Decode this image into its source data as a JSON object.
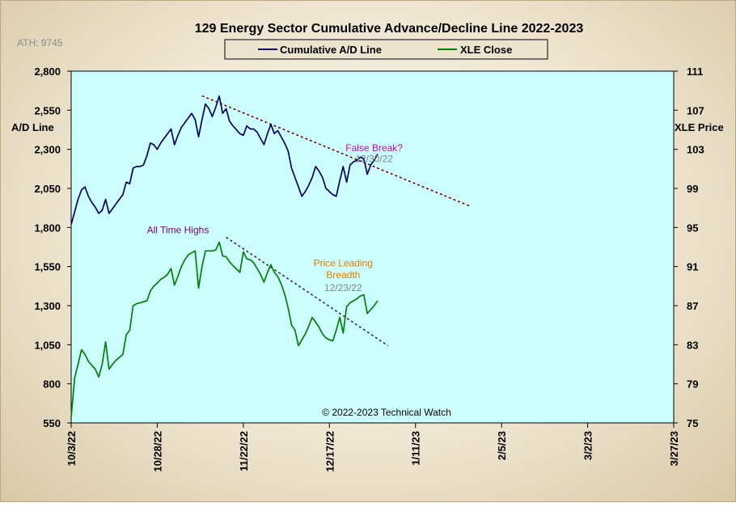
{
  "chart_data": {
    "type": "line",
    "title": "129 Energy Sector Cumulative Advance/Decline Line 2022-2023",
    "ath_note": "ATH: 9745",
    "y_left_label": "A/D Line",
    "y_right_label": "XLE Price",
    "copyright": "© 2022-2023  Technical Watch",
    "y_left": {
      "min": 550,
      "max": 2800,
      "ticks": [
        550,
        800,
        1050,
        1300,
        1550,
        1800,
        2050,
        2300,
        2550,
        2800
      ],
      "tick_labels": [
        "550",
        "800",
        "1,050",
        "1,300",
        "1,550",
        "1,800",
        "2,050",
        "2,300",
        "2,550",
        "2,800"
      ]
    },
    "y_right": {
      "min": 75,
      "max": 111,
      "ticks": [
        75,
        79,
        83,
        87,
        91,
        95,
        99,
        103,
        107,
        111
      ],
      "tick_labels": [
        "75",
        "79",
        "83",
        "87",
        "91",
        "95",
        "99",
        "103",
        "107",
        "111"
      ]
    },
    "x": {
      "min_day": 0,
      "max_day": 175,
      "ticks": [
        0,
        25,
        50,
        75,
        100,
        125,
        150,
        175
      ],
      "tick_labels": [
        "10/3/22",
        "10/28/22",
        "11/22/22",
        "12/17/22",
        "1/11/23",
        "2/5/23",
        "3/2/23",
        "3/27/23"
      ]
    },
    "grid": false,
    "legend_position": "top-center",
    "colors": {
      "plot_bg": "#ccffff",
      "ad_line": "#000066",
      "xle_line": "#008000",
      "trend_ad": "#800000",
      "trend_xle": "#333333",
      "false_break": "#cc00cc",
      "date_gray": "#808080",
      "ath_label": "#800080",
      "price_leading": "#e07b00"
    },
    "series": [
      {
        "name": "Cumulative A/D Line",
        "axis": "left",
        "points": [
          [
            0,
            1820
          ],
          [
            1,
            1900
          ],
          [
            2,
            1980
          ],
          [
            3,
            2040
          ],
          [
            4,
            2060
          ],
          [
            5,
            2000
          ],
          [
            6,
            1960
          ],
          [
            7,
            1930
          ],
          [
            8,
            1890
          ],
          [
            9,
            1910
          ],
          [
            10,
            1980
          ],
          [
            11,
            1890
          ],
          [
            12,
            1920
          ],
          [
            13,
            1950
          ],
          [
            15,
            2010
          ],
          [
            16,
            2090
          ],
          [
            17,
            2080
          ],
          [
            18,
            2180
          ],
          [
            19,
            2190
          ],
          [
            20,
            2190
          ],
          [
            21,
            2200
          ],
          [
            22,
            2260
          ],
          [
            23,
            2340
          ],
          [
            24,
            2330
          ],
          [
            25,
            2300
          ],
          [
            26,
            2340
          ],
          [
            27,
            2370
          ],
          [
            29,
            2430
          ],
          [
            30,
            2330
          ],
          [
            31,
            2390
          ],
          [
            32,
            2440
          ],
          [
            33,
            2470
          ],
          [
            35,
            2530
          ],
          [
            36,
            2490
          ],
          [
            37,
            2380
          ],
          [
            38,
            2490
          ],
          [
            39,
            2590
          ],
          [
            40,
            2560
          ],
          [
            41,
            2510
          ],
          [
            42,
            2570
          ],
          [
            43,
            2640
          ],
          [
            44,
            2530
          ],
          [
            45,
            2560
          ],
          [
            46,
            2480
          ],
          [
            47,
            2450
          ],
          [
            49,
            2400
          ],
          [
            50,
            2390
          ],
          [
            51,
            2450
          ],
          [
            52,
            2430
          ],
          [
            53,
            2430
          ],
          [
            54,
            2410
          ],
          [
            55,
            2370
          ],
          [
            56,
            2330
          ],
          [
            57,
            2400
          ],
          [
            58,
            2460
          ],
          [
            59,
            2400
          ],
          [
            60,
            2420
          ],
          [
            61,
            2380
          ],
          [
            62,
            2340
          ],
          [
            63,
            2290
          ],
          [
            64,
            2180
          ],
          [
            65,
            2120
          ],
          [
            66,
            2060
          ],
          [
            67,
            2000
          ],
          [
            68,
            2030
          ],
          [
            69,
            2070
          ],
          [
            70,
            2120
          ],
          [
            71,
            2190
          ],
          [
            72,
            2160
          ],
          [
            73,
            2120
          ],
          [
            74,
            2050
          ],
          [
            75,
            2030
          ],
          [
            76,
            2010
          ],
          [
            77,
            2000
          ],
          [
            78,
            2100
          ],
          [
            79,
            2190
          ],
          [
            80,
            2090
          ],
          [
            81,
            2200
          ],
          [
            82,
            2220
          ],
          [
            83,
            2230
          ],
          [
            84,
            2250
          ],
          [
            85,
            2240
          ],
          [
            86,
            2140
          ],
          [
            87,
            2200
          ],
          [
            88,
            2230
          ],
          [
            89,
            2270
          ]
        ]
      },
      {
        "name": "XLE Close",
        "axis": "right",
        "points": [
          [
            0,
            75.6
          ],
          [
            1,
            79.6
          ],
          [
            2,
            81.0
          ],
          [
            3,
            82.5
          ],
          [
            4,
            82.0
          ],
          [
            5,
            81.3
          ],
          [
            6,
            80.9
          ],
          [
            7,
            80.5
          ],
          [
            8,
            79.7
          ],
          [
            9,
            81.0
          ],
          [
            10,
            83.3
          ],
          [
            11,
            80.5
          ],
          [
            12,
            81.0
          ],
          [
            13,
            81.4
          ],
          [
            15,
            82.0
          ],
          [
            16,
            84.0
          ],
          [
            17,
            84.5
          ],
          [
            18,
            87.0
          ],
          [
            19,
            87.2
          ],
          [
            20,
            87.3
          ],
          [
            21,
            87.4
          ],
          [
            22,
            87.5
          ],
          [
            23,
            88.5
          ],
          [
            24,
            89.0
          ],
          [
            25,
            89.3
          ],
          [
            26,
            89.7
          ],
          [
            27,
            89.9
          ],
          [
            28,
            90.2
          ],
          [
            29,
            90.8
          ],
          [
            30,
            89.1
          ],
          [
            31,
            90.0
          ],
          [
            32,
            91.0
          ],
          [
            33,
            91.7
          ],
          [
            34,
            92.2
          ],
          [
            35,
            92.4
          ],
          [
            36,
            92.6
          ],
          [
            37,
            88.8
          ],
          [
            38,
            91.0
          ],
          [
            39,
            92.6
          ],
          [
            40,
            92.6
          ],
          [
            41,
            92.6
          ],
          [
            42,
            92.7
          ],
          [
            43,
            93.5
          ],
          [
            44,
            92.1
          ],
          [
            45,
            92.0
          ],
          [
            46,
            91.5
          ],
          [
            47,
            91.1
          ],
          [
            49,
            90.4
          ],
          [
            50,
            92.5
          ],
          [
            51,
            91.8
          ],
          [
            52,
            91.7
          ],
          [
            53,
            91.4
          ],
          [
            54,
            90.8
          ],
          [
            55,
            90.2
          ],
          [
            56,
            89.4
          ],
          [
            57,
            90.4
          ],
          [
            58,
            91.2
          ],
          [
            59,
            90.4
          ],
          [
            60,
            90.0
          ],
          [
            61,
            89.2
          ],
          [
            62,
            88.2
          ],
          [
            63,
            86.8
          ],
          [
            64,
            85.0
          ],
          [
            65,
            84.5
          ],
          [
            66,
            82.9
          ],
          [
            67,
            83.5
          ],
          [
            68,
            84.1
          ],
          [
            69,
            84.9
          ],
          [
            70,
            85.8
          ],
          [
            71,
            85.3
          ],
          [
            72,
            84.8
          ],
          [
            73,
            84.1
          ],
          [
            74,
            83.7
          ],
          [
            75,
            83.5
          ],
          [
            76,
            83.4
          ],
          [
            77,
            84.5
          ],
          [
            78,
            85.8
          ],
          [
            79,
            84.2
          ],
          [
            80,
            86.9
          ],
          [
            81,
            87.3
          ],
          [
            82,
            87.5
          ],
          [
            83,
            87.7
          ],
          [
            84,
            88.0
          ],
          [
            85,
            88.1
          ],
          [
            86,
            86.2
          ],
          [
            87,
            86.6
          ],
          [
            88,
            87.0
          ],
          [
            89,
            87.5
          ]
        ]
      }
    ],
    "trendlines": [
      {
        "axis": "left",
        "color_key": "trend_ad",
        "start": [
          38,
          2642
        ],
        "end": [
          116,
          1935
        ]
      },
      {
        "axis": "right",
        "color_key": "trend_xle",
        "start": [
          45,
          94.0
        ],
        "end": [
          92,
          82.9
        ]
      }
    ],
    "annotations": [
      {
        "text": "False Break?",
        "color_key": "false_break",
        "at": [
          88,
          102.8
        ]
      },
      {
        "text": "12/30/22",
        "color_key": "date_gray",
        "at": [
          88,
          101.7
        ]
      },
      {
        "text": "All Time  Highs",
        "color_key": "ath_label",
        "at": [
          31,
          94.4
        ]
      },
      {
        "text": "Price Leading",
        "color_key": "price_leading",
        "at": [
          79,
          91.0
        ]
      },
      {
        "text": "Breadth",
        "color_key": "price_leading",
        "at": [
          79,
          89.8
        ]
      },
      {
        "text": "12/23/22",
        "color_key": "date_gray",
        "at": [
          79,
          88.5
        ]
      }
    ]
  }
}
